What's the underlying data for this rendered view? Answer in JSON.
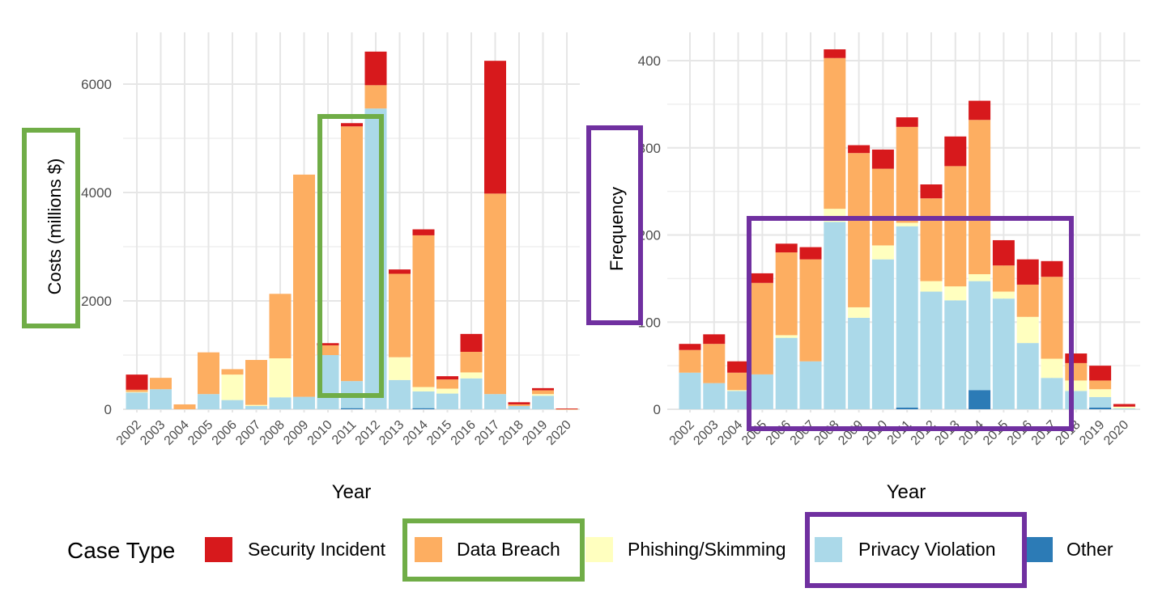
{
  "legend": {
    "title": "Case Type",
    "items": [
      {
        "label": "Security Incident",
        "color": "#d7191c"
      },
      {
        "label": "Data Breach",
        "color": "#fdae61"
      },
      {
        "label": "Phishing/Skimming",
        "color": "#ffffbf"
      },
      {
        "label": "Privacy Violation",
        "color": "#abd9e9"
      },
      {
        "label": "Other",
        "color": "#2c7bb6"
      }
    ],
    "placement": "bottom"
  },
  "highlights": {
    "color_green": "#70ad47",
    "color_purple": "#7030a0"
  },
  "chart_data": [
    {
      "type": "bar",
      "stacked": true,
      "xlabel": "Year",
      "ylabel": "Costs (millions $)",
      "ylim": [
        0,
        6900
      ],
      "yticks": [
        "0",
        "2000",
        "4000",
        "6000"
      ],
      "grid": true,
      "categories": [
        "2002",
        "2003",
        "2004",
        "2005",
        "2006",
        "2007",
        "2008",
        "2009",
        "2010",
        "2011",
        "2012",
        "2013",
        "2014",
        "2015",
        "2016",
        "2017",
        "2018",
        "2019",
        "2020"
      ],
      "series": [
        {
          "name": "Other",
          "values": [
            0,
            0,
            0,
            0,
            0,
            0,
            0,
            0,
            0,
            20,
            0,
            0,
            20,
            0,
            0,
            0,
            0,
            0,
            0
          ]
        },
        {
          "name": "Privacy Violation",
          "values": [
            310,
            370,
            0,
            280,
            170,
            60,
            220,
            230,
            1000,
            500,
            5550,
            540,
            310,
            290,
            570,
            280,
            60,
            250,
            0
          ]
        },
        {
          "name": "Phishing/Skimming",
          "values": [
            10,
            0,
            0,
            0,
            470,
            20,
            720,
            0,
            0,
            0,
            0,
            420,
            80,
            90,
            110,
            0,
            0,
            30,
            0
          ]
        },
        {
          "name": "Data Breach",
          "values": [
            40,
            210,
            90,
            770,
            100,
            830,
            1190,
            4100,
            180,
            4700,
            430,
            1540,
            2800,
            170,
            380,
            3700,
            30,
            70,
            5
          ]
        },
        {
          "name": "Security Incident",
          "values": [
            280,
            0,
            0,
            0,
            0,
            0,
            0,
            0,
            40,
            60,
            620,
            80,
            110,
            60,
            330,
            2450,
            40,
            40,
            10
          ]
        }
      ]
    },
    {
      "type": "bar",
      "stacked": true,
      "xlabel": "Year",
      "ylabel": "Frequency",
      "ylim": [
        0,
        415
      ],
      "yticks": [
        "0",
        "100",
        "200",
        "300",
        "400"
      ],
      "grid": true,
      "categories": [
        "2002",
        "2003",
        "2004",
        "2005",
        "2006",
        "2007",
        "2008",
        "2009",
        "2010",
        "2011",
        "2012",
        "2013",
        "2014",
        "2015",
        "2016",
        "2017",
        "2018",
        "2019",
        "2020"
      ],
      "series": [
        {
          "name": "Other",
          "values": [
            0,
            0,
            0,
            0,
            0,
            0,
            0,
            0,
            0,
            2,
            0,
            0,
            22,
            0,
            0,
            0,
            0,
            2,
            0
          ]
        },
        {
          "name": "Privacy Violation",
          "values": [
            42,
            30,
            21,
            40,
            82,
            55,
            215,
            105,
            172,
            208,
            135,
            125,
            125,
            127,
            76,
            36,
            21,
            12,
            1
          ]
        },
        {
          "name": "Phishing/Skimming",
          "values": [
            0,
            0,
            1,
            0,
            3,
            0,
            15,
            12,
            16,
            4,
            12,
            16,
            8,
            8,
            30,
            22,
            12,
            9,
            2
          ]
        },
        {
          "name": "Data Breach",
          "values": [
            26,
            45,
            20,
            105,
            95,
            117,
            173,
            177,
            88,
            110,
            95,
            138,
            177,
            30,
            37,
            94,
            20,
            10,
            0
          ]
        },
        {
          "name": "Security Incident",
          "values": [
            7,
            11,
            13,
            11,
            10,
            14,
            10,
            9,
            22,
            11,
            16,
            34,
            22,
            29,
            29,
            18,
            11,
            17,
            3
          ]
        }
      ]
    }
  ]
}
